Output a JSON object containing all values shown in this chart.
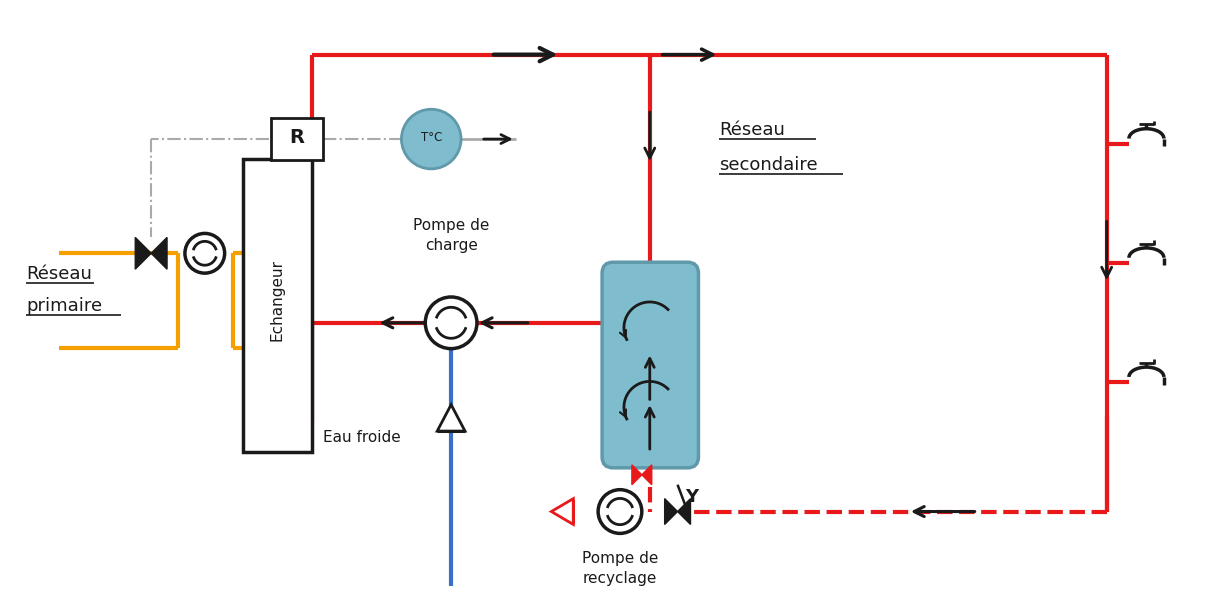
{
  "bg_color": "#ffffff",
  "red": "#e8191a",
  "orange": "#f5a000",
  "blue": "#3a6fcc",
  "teal_fill": "#7fbdce",
  "teal_edge": "#6099aa",
  "black": "#1a1a1a",
  "gray": "#aaaaaa",
  "fig_width": 12.31,
  "fig_height": 5.95,
  "labels": {
    "reseau_primaire": "Réseau\nprimaire",
    "echangeur": "Echangeur",
    "reseau_secondaire": "Réseau\nsecondaire",
    "pompe_charge": "Pompe de\ncharge",
    "eau_froide": "Eau froide",
    "pompe_recyclage": "Pompe de\nrecyclage",
    "R": "R",
    "TdegC": "T°C"
  }
}
